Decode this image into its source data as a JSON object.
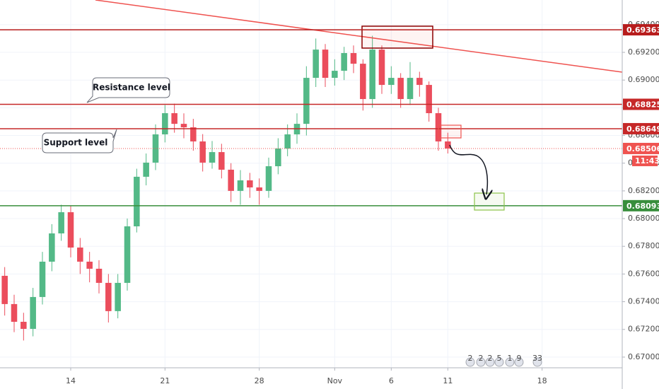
{
  "chart_data": {
    "type": "candlestick",
    "up_color": "#53b987",
    "down_color": "#eb4d5c",
    "ylim": [
      0.66923,
      0.69578
    ],
    "yticks": [
      {
        "value": 0.67,
        "label": "0.67000"
      },
      {
        "value": 0.672,
        "label": "0.67200"
      },
      {
        "value": 0.674,
        "label": "0.67400"
      },
      {
        "value": 0.676,
        "label": "0.67600"
      },
      {
        "value": 0.678,
        "label": "0.67800"
      },
      {
        "value": 0.68,
        "label": "0.68000"
      },
      {
        "value": 0.682,
        "label": "0.68200"
      },
      {
        "value": 0.684,
        "label": "0.68400"
      },
      {
        "value": 0.686,
        "label": "0.68600"
      },
      {
        "value": 0.688,
        "label": "0.68800"
      },
      {
        "value": 0.69,
        "label": "0.69000"
      },
      {
        "value": 0.692,
        "label": "0.69200"
      },
      {
        "value": 0.694,
        "label": "0.69400"
      }
    ],
    "grid": true,
    "categories": [
      null,
      null,
      null,
      null,
      null,
      null,
      null,
      "14",
      null,
      null,
      null,
      null,
      null,
      null,
      null,
      null,
      null,
      "21",
      null,
      null,
      null,
      null,
      null,
      null,
      null,
      null,
      null,
      "28",
      null,
      null,
      null,
      null,
      null,
      null,
      null,
      "Nov",
      null,
      null,
      null,
      null,
      null,
      "6",
      null,
      null,
      null,
      null,
      null,
      "11",
      null,
      null,
      null,
      null,
      null,
      null,
      null,
      null,
      null,
      "18",
      null,
      null,
      null,
      null,
      null,
      null,
      null,
      null
    ],
    "open": [
      0.67587,
      0.67383,
      0.67255,
      0.67204,
      0.67434,
      0.67689,
      0.67893,
      0.68046,
      0.67791,
      0.67689,
      0.67638,
      0.67536,
      0.67332,
      0.67536,
      0.67944,
      0.68302,
      0.68404,
      0.68608,
      0.68761,
      0.68684,
      0.68659,
      0.68557,
      0.68404,
      0.6848,
      0.68353,
      0.682,
      0.68276,
      0.68225,
      0.682,
      0.68378,
      0.68506,
      0.68608,
      0.68684,
      0.69016,
      0.6922,
      0.69016,
      0.69067,
      0.69195,
      0.69118,
      0.68863,
      0.6922,
      0.68965,
      0.69016,
      0.68863,
      0.69016,
      0.68965,
      0.68761,
      0.68557,
      null,
      null,
      null,
      null,
      null,
      null,
      null,
      null,
      null,
      null,
      null,
      null,
      null,
      null,
      null,
      null,
      null,
      null
    ],
    "high": [
      0.6765,
      0.6745,
      0.6732,
      0.675,
      0.6776,
      0.6796,
      0.681,
      0.6809,
      0.6786,
      0.6776,
      0.677,
      0.676,
      0.676,
      0.68,
      0.6836,
      0.6847,
      0.6868,
      0.6882,
      0.6883,
      0.6876,
      0.6872,
      0.6861,
      0.6856,
      0.6854,
      0.684,
      0.6835,
      0.6833,
      0.6829,
      0.6844,
      0.6858,
      0.6868,
      0.6876,
      0.691,
      0.693,
      0.6926,
      0.6915,
      0.6924,
      0.6925,
      0.6915,
      0.6932,
      0.6925,
      0.691,
      0.6905,
      0.6913,
      0.6906,
      0.6899,
      0.688,
      0.6862,
      null,
      null,
      null,
      null,
      null,
      null,
      null,
      null,
      null,
      null,
      null,
      null,
      null,
      null,
      null,
      null,
      null,
      null
    ],
    "low": [
      0.673,
      0.6718,
      0.6712,
      0.6715,
      0.6738,
      0.6762,
      0.6784,
      0.6772,
      0.676,
      0.6754,
      0.6746,
      0.6725,
      0.6728,
      0.6748,
      0.679,
      0.6824,
      0.6835,
      0.6855,
      0.6862,
      0.6858,
      0.6849,
      0.6834,
      0.6836,
      0.6829,
      0.6812,
      0.681,
      0.6815,
      0.681,
      0.6815,
      0.6832,
      0.6845,
      0.6854,
      0.686,
      0.6895,
      0.6895,
      0.6896,
      0.69,
      0.6905,
      0.6878,
      0.688,
      0.689,
      0.689,
      0.688,
      0.6882,
      0.6888,
      0.687,
      0.6849,
      0.6847,
      null,
      null,
      null,
      null,
      null,
      null,
      null,
      null,
      null,
      null,
      null,
      null,
      null,
      null,
      null,
      null,
      null,
      null
    ],
    "close": [
      0.67383,
      0.67255,
      0.67204,
      0.67434,
      0.67689,
      0.67893,
      0.68046,
      0.67791,
      0.67689,
      0.67638,
      0.67536,
      0.67332,
      0.67536,
      0.67944,
      0.68302,
      0.68404,
      0.68608,
      0.68761,
      0.68684,
      0.68659,
      0.68557,
      0.68404,
      0.6848,
      0.68353,
      0.682,
      0.68276,
      0.68225,
      0.682,
      0.68378,
      0.68506,
      0.68608,
      0.68684,
      0.69016,
      0.6922,
      0.69016,
      0.69067,
      0.69195,
      0.69118,
      0.68863,
      0.6922,
      0.68965,
      0.69016,
      0.68863,
      0.69016,
      0.68965,
      0.68761,
      0.68557,
      0.68506,
      null,
      null,
      null,
      null,
      null,
      null,
      null,
      null,
      null,
      null,
      null,
      null,
      null,
      null,
      null,
      null,
      null,
      null
    ],
    "levels": [
      {
        "value": 0.69363,
        "color": "#b71c1c",
        "style": "solid"
      },
      {
        "value": 0.68825,
        "color": "#c62828",
        "style": "solid"
      },
      {
        "value": 0.68649,
        "color": "#c62828",
        "style": "solid"
      },
      {
        "value": 0.68506,
        "color": "#ef5350",
        "style": "dotted",
        "countdown": "11:43"
      },
      {
        "value": 0.68093,
        "color": "#388e3c",
        "style": "solid"
      }
    ],
    "annotations": [
      "Resistance level",
      "Support level"
    ],
    "events": [
      "2",
      "2",
      "2",
      "5",
      "1",
      "9",
      "33"
    ]
  }
}
